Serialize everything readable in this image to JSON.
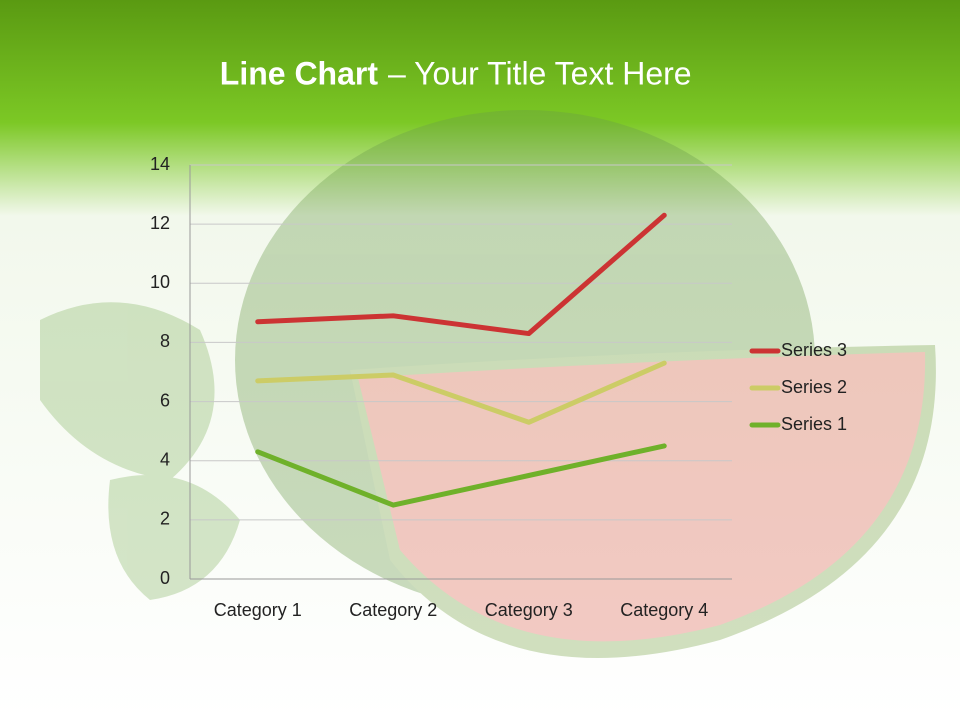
{
  "chart_data": {
    "type": "line",
    "stacked": true,
    "title_bold": "Line Chart",
    "title_rest": "– Your Title Text Here",
    "categories": [
      "Category 1",
      "Category 2",
      "Category 3",
      "Category 4"
    ],
    "series": [
      {
        "name": "Series 1",
        "color": "#6fb12a",
        "values": [
          4.3,
          2.5,
          3.5,
          4.5
        ]
      },
      {
        "name": "Series 2",
        "color": "#cccc66",
        "values": [
          2.4,
          4.4,
          1.8,
          2.8
        ]
      },
      {
        "name": "Series 3",
        "color": "#cc3333",
        "values": [
          2,
          2,
          3,
          5
        ]
      }
    ],
    "ylim": [
      0,
      14
    ],
    "yticks": [
      0,
      2,
      4,
      6,
      8,
      10,
      12,
      14
    ],
    "grid": true,
    "legend": "right"
  }
}
